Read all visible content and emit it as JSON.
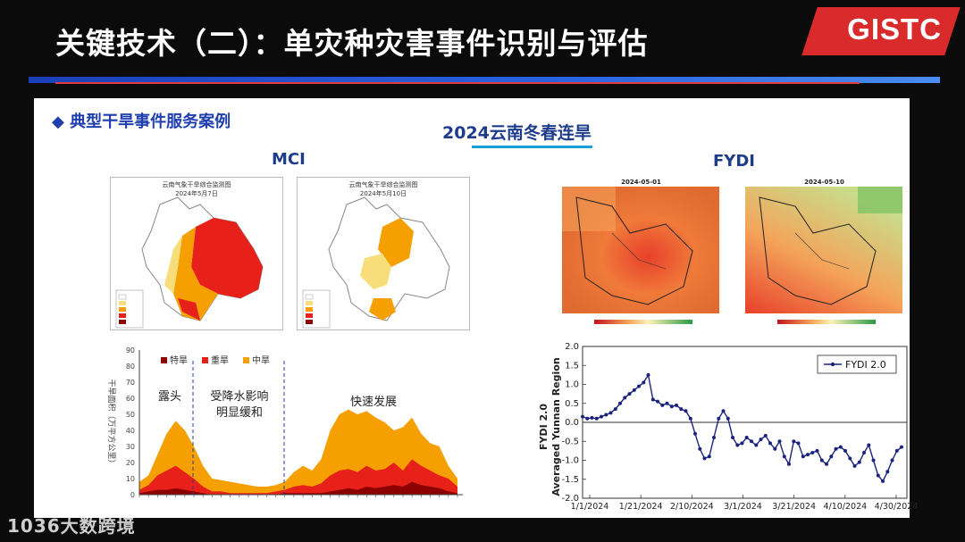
{
  "slide": {
    "title": "关键技术（二）：单灾种灾害事件识别与评估",
    "logo": "GISTC",
    "case_label": "◆ 典型干旱事件服务案例",
    "drought_title": "2024云南冬春连旱",
    "watermark": "1036大数跨境"
  },
  "mci": {
    "label": "MCI",
    "maps": [
      {
        "title": "云南气象干旱综合监测图",
        "date": "2024年5月7日"
      },
      {
        "title": "云南气象干旱综合监测图",
        "date": "2024年5月10日"
      }
    ]
  },
  "fydi": {
    "label": "FYDI",
    "maps": [
      {
        "date": "2024-05-01"
      },
      {
        "date": "2024-05-10"
      }
    ]
  },
  "colors": {
    "brand_red": "#d92b2b",
    "title_blue": "#1e3c8c",
    "special": "#8b0000",
    "severe": "#e8201a",
    "moderate": "#f5a000"
  },
  "chart_data": [
    {
      "type": "area",
      "title": "",
      "ylabel": "干旱面积（万平方公里）",
      "ylim": [
        0,
        90
      ],
      "yticks": [
        0,
        10,
        20,
        30,
        40,
        50,
        60,
        70,
        80,
        90
      ],
      "xtick_count": 36,
      "legend": [
        "特旱",
        "重旱",
        "中旱"
      ],
      "annotations": [
        "露头",
        "受降水影响\n明显缓和",
        "快速发展"
      ],
      "series": [
        {
          "name": "中旱",
          "values": [
            8,
            12,
            25,
            38,
            46,
            40,
            30,
            18,
            10,
            9,
            8,
            7,
            6,
            5,
            5,
            6,
            8,
            14,
            18,
            15,
            22,
            40,
            50,
            53,
            50,
            52,
            48,
            45,
            40,
            42,
            48,
            38,
            32,
            30,
            18,
            10
          ]
        },
        {
          "name": "重旱",
          "values": [
            3,
            6,
            12,
            15,
            18,
            14,
            10,
            5,
            2,
            2,
            1,
            1,
            1,
            1,
            1,
            2,
            3,
            5,
            6,
            5,
            7,
            12,
            15,
            16,
            14,
            18,
            15,
            16,
            20,
            15,
            22,
            18,
            15,
            12,
            10,
            5
          ]
        },
        {
          "name": "特旱",
          "values": [
            1,
            2,
            3,
            3,
            4,
            3,
            2,
            1,
            0,
            0,
            0,
            0,
            0,
            0,
            0,
            0,
            1,
            1,
            1,
            1,
            1,
            2,
            3,
            4,
            3,
            5,
            4,
            5,
            6,
            5,
            8,
            6,
            5,
            4,
            2,
            1
          ]
        }
      ]
    },
    {
      "type": "line",
      "ylabel": "FYDI 2.0\nAveraged Yunnan Region",
      "ylim": [
        -2.0,
        2.0
      ],
      "yticks": [
        "2.0",
        "1.5",
        "1.0",
        "0.5",
        "0.0",
        "-0.5",
        "-1.0",
        "-1.5",
        "-2.0"
      ],
      "xticks": [
        "1/1/2024",
        "1/21/2024",
        "2/10/2024",
        "3/1/2024",
        "3/21/2024",
        "4/10/2024",
        "4/30/2024"
      ],
      "legend": "FYDI 2.0",
      "x": [
        0,
        2,
        4,
        6,
        8,
        10,
        12,
        14,
        16,
        18,
        20,
        22,
        24,
        26,
        28,
        30,
        32,
        34,
        36,
        38,
        40,
        42,
        44,
        46,
        48,
        50,
        52,
        54,
        56,
        58,
        60,
        62,
        64,
        66,
        68,
        70,
        72,
        74,
        76,
        78,
        80,
        82,
        84,
        86,
        88,
        90,
        92,
        94,
        96,
        98,
        100,
        102,
        104,
        106,
        108,
        110,
        112,
        114,
        116,
        118,
        120,
        122,
        124,
        126,
        128,
        130,
        132,
        134,
        136
      ],
      "values": [
        0.15,
        0.1,
        0.12,
        0.1,
        0.15,
        0.2,
        0.25,
        0.35,
        0.5,
        0.65,
        0.75,
        0.85,
        0.95,
        1.05,
        1.25,
        0.6,
        0.55,
        0.45,
        0.5,
        0.42,
        0.45,
        0.35,
        0.3,
        0.1,
        -0.3,
        -0.7,
        -0.95,
        -0.9,
        -0.4,
        0.1,
        0.3,
        0.1,
        -0.4,
        -0.6,
        -0.55,
        -0.4,
        -0.5,
        -0.6,
        -0.45,
        -0.35,
        -0.55,
        -0.7,
        -0.5,
        -0.9,
        -1.1,
        -0.5,
        -0.55,
        -0.9,
        -0.85,
        -0.8,
        -0.75,
        -1.0,
        -1.1,
        -0.9,
        -0.7,
        -0.65,
        -0.75,
        -0.95,
        -1.15,
        -1.05,
        -0.8,
        -0.6,
        -1.0,
        -1.4,
        -1.55,
        -1.3,
        -1.0,
        -0.75,
        -0.65
      ]
    }
  ]
}
